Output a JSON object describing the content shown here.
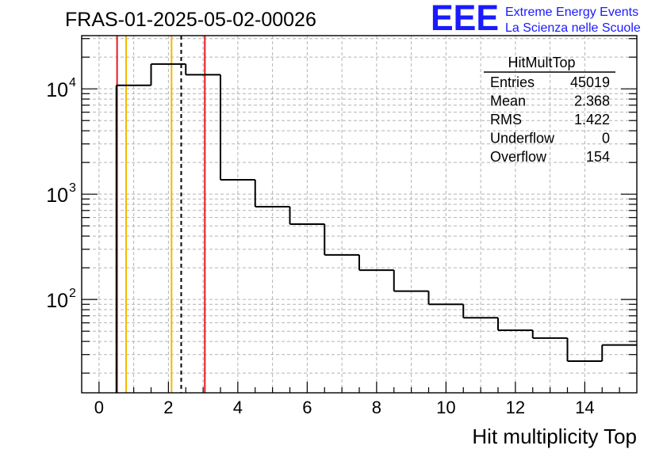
{
  "chart_data": {
    "type": "histogram",
    "title": "FRAS-01-2025-05-02-00026",
    "xlabel": "Hit multiplicity Top",
    "ylabel": "",
    "xlim": [
      -0.5,
      15.5
    ],
    "ylim": [
      13,
      32000
    ],
    "yscale": "log",
    "grid": true,
    "bin_width": 1,
    "bins": [
      {
        "x": 1,
        "count": 10800
      },
      {
        "x": 2,
        "count": 17200
      },
      {
        "x": 3,
        "count": 13600
      },
      {
        "x": 4,
        "count": 1370
      },
      {
        "x": 5,
        "count": 760
      },
      {
        "x": 6,
        "count": 520
      },
      {
        "x": 7,
        "count": 265
      },
      {
        "x": 8,
        "count": 190
      },
      {
        "x": 9,
        "count": 120
      },
      {
        "x": 10,
        "count": 90
      },
      {
        "x": 11,
        "count": 67
      },
      {
        "x": 12,
        "count": 51
      },
      {
        "x": 13,
        "count": 43
      },
      {
        "x": 14,
        "count": 26
      },
      {
        "x": 15,
        "count": 37
      }
    ],
    "xticks": [
      "0",
      "2",
      "4",
      "6",
      "8",
      "10",
      "12",
      "14"
    ],
    "ytick_labels": [
      {
        "value": 10000,
        "base": "10",
        "exp": "4"
      },
      {
        "value": 1000,
        "base": "10",
        "exp": "3"
      },
      {
        "value": 100,
        "base": "10",
        "exp": "2"
      }
    ],
    "vertical_lines": [
      {
        "x": 0.52,
        "color": "#e8191c",
        "style": "solid"
      },
      {
        "x": 0.78,
        "color": "#f5b800",
        "style": "solid"
      },
      {
        "x": 2.09,
        "color": "#f5b800",
        "style": "solid"
      },
      {
        "x": 2.368,
        "color": "#000000",
        "style": "dashed"
      },
      {
        "x": 3.05,
        "color": "#e8191c",
        "style": "solid"
      }
    ],
    "stats": {
      "name": "HitMultTop",
      "rows": [
        {
          "label": "Entries",
          "value": "45019"
        },
        {
          "label": "Mean",
          "value": "2.368"
        },
        {
          "label": "RMS",
          "value": "1.422"
        },
        {
          "label": "Underflow",
          "value": "0"
        },
        {
          "label": "Overflow",
          "value": "154"
        }
      ]
    }
  },
  "logo": {
    "mark": "EEE",
    "line1": "Extreme Energy Events",
    "line2": "La Scienza nelle Scuole",
    "color": "#1a1aff"
  }
}
